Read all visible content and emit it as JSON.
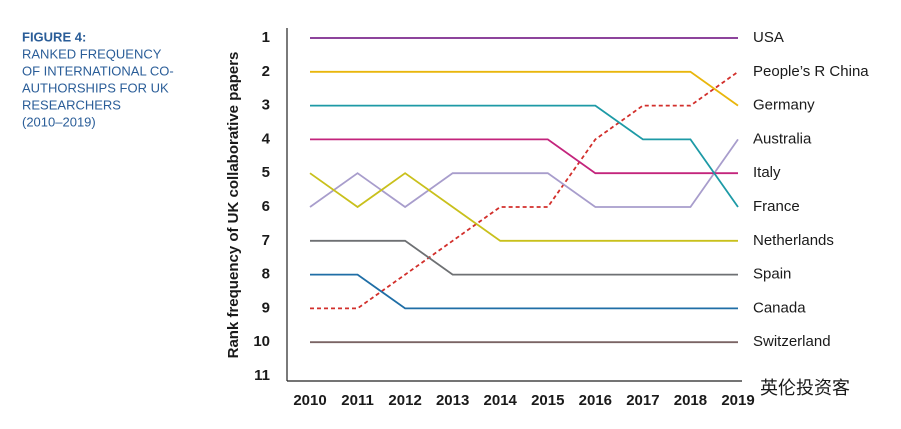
{
  "chart_data": {
    "type": "line",
    "title": "FIGURE 4:",
    "subtitle": [
      "RANKED FREQUENCY",
      "OF INTERNATIONAL CO-",
      "AUTHORSHIPS FOR UK",
      "RESEARCHERS",
      "(2010–2019)"
    ],
    "y_label": "Rank frequency of UK collaborative papers",
    "watermark": "英伦投资客",
    "categories": [
      "2010",
      "2011",
      "2012",
      "2013",
      "2014",
      "2015",
      "2016",
      "2017",
      "2018",
      "2019"
    ],
    "ylim": [
      11,
      1
    ],
    "yticks": [
      1,
      2,
      3,
      4,
      5,
      6,
      7,
      8,
      9,
      10,
      11
    ],
    "series": [
      {
        "name": "USA",
        "color": "#7d2a8e",
        "values": [
          1,
          1,
          1,
          1,
          1,
          1,
          1,
          1,
          1,
          1
        ]
      },
      {
        "name": "People’s R China",
        "color": "#d22f2b",
        "style": "dashed",
        "values": [
          9,
          9,
          8,
          7,
          6,
          6,
          4,
          3,
          3,
          2
        ]
      },
      {
        "name": "Germany",
        "color": "#e9b60c",
        "values": [
          2,
          2,
          2,
          2,
          2,
          2,
          2,
          2,
          2,
          3
        ]
      },
      {
        "name": "Australia",
        "color": "#a89dcc",
        "values": [
          6,
          5,
          6,
          5,
          5,
          5,
          6,
          6,
          6,
          4
        ]
      },
      {
        "name": "Italy",
        "color": "#c3247c",
        "values": [
          4,
          4,
          4,
          4,
          4,
          4,
          5,
          5,
          5,
          5
        ]
      },
      {
        "name": "France",
        "color": "#1d9aa6",
        "values": [
          3,
          3,
          3,
          3,
          3,
          3,
          3,
          4,
          4,
          6
        ]
      },
      {
        "name": "Netherlands",
        "color": "#c9c01c",
        "values": [
          5,
          6,
          5,
          6,
          7,
          7,
          7,
          7,
          7,
          7
        ]
      },
      {
        "name": "Spain",
        "color": "#6e7073",
        "values": [
          7,
          7,
          7,
          8,
          8,
          8,
          8,
          8,
          8,
          8
        ]
      },
      {
        "name": "Canada",
        "color": "#1f6ea6",
        "values": [
          8,
          8,
          9,
          9,
          9,
          9,
          9,
          9,
          9,
          9
        ]
      },
      {
        "name": "Switzerland",
        "color": "#7a6464",
        "values": [
          10,
          10,
          10,
          10,
          10,
          10,
          10,
          10,
          10,
          10
        ]
      }
    ]
  }
}
